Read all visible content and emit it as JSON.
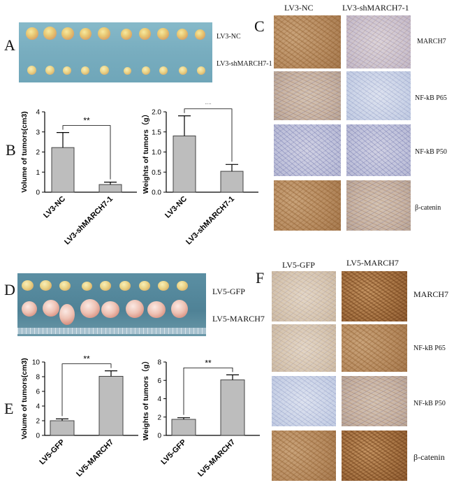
{
  "panels": {
    "a": "A",
    "b": "B",
    "c": "C",
    "d": "D",
    "e": "E",
    "f": "F"
  },
  "panel_a": {
    "row1_label": "LV3-NC",
    "row2_label": "LV3-shMARCH7-1"
  },
  "panel_c": {
    "col1": "LV3-NC",
    "col2": "LV3-shMARCH7-1",
    "rows": [
      "MARCH7",
      "NF-kB P65",
      "NF-kB P50",
      "β-catenin"
    ]
  },
  "panel_d": {
    "row1_label": "LV5-GFP",
    "row2_label": "LV5-MARCH7"
  },
  "panel_f": {
    "col1": "LV5-GFP",
    "col2": "LV5-MARCH7",
    "rows": [
      "MARCH7",
      "NF-kB P65",
      "NF-kB P50",
      "β-catenin"
    ]
  },
  "colors": {
    "bar_fill": "#bdbdbd",
    "tray_a": "#7db2c4",
    "tray_d": "#55889c",
    "brown_stain": "#b88d62"
  },
  "chart_data": [
    {
      "id": "b1",
      "type": "bar",
      "categories": [
        "LV3-NC",
        "LV3-shMARCH7-1"
      ],
      "values": [
        2.22,
        0.38
      ],
      "errors": [
        0.75,
        0.12
      ],
      "ylabel": "Volume of tumors(cm3)",
      "ylim": [
        0,
        4
      ],
      "yticks": [
        "0",
        "1",
        "2",
        "3",
        "4"
      ],
      "significance": "**"
    },
    {
      "id": "b2",
      "type": "bar",
      "categories": [
        "LV3-NC",
        "LV3-shMARCH7-1"
      ],
      "values": [
        1.4,
        0.52
      ],
      "errors": [
        0.5,
        0.17
      ],
      "ylabel": "Weights of tumors（g）",
      "ylim": [
        0,
        2.0
      ],
      "yticks": [
        "0.0",
        "0.5",
        "1.0",
        "1.5",
        "2.0"
      ],
      "significance": "**"
    },
    {
      "id": "e1",
      "type": "bar",
      "categories": [
        "LV5-GFP",
        "LV5-MARCH7"
      ],
      "values": [
        2.0,
        8.05
      ],
      "errors": [
        0.25,
        0.75
      ],
      "ylabel": "Volume of tumors(cm3)",
      "ylim": [
        0,
        10
      ],
      "yticks": [
        "0",
        "2",
        "4",
        "6",
        "8",
        "10"
      ],
      "significance": "**"
    },
    {
      "id": "e2",
      "type": "bar",
      "categories": [
        "LV5-GFP",
        "LV5-MARCH7"
      ],
      "values": [
        1.75,
        6.05
      ],
      "errors": [
        0.18,
        0.55
      ],
      "ylabel": "Weights of tumors（g）",
      "ylim": [
        0,
        8
      ],
      "yticks": [
        "0",
        "2",
        "4",
        "6",
        "8"
      ],
      "significance": "**"
    }
  ]
}
